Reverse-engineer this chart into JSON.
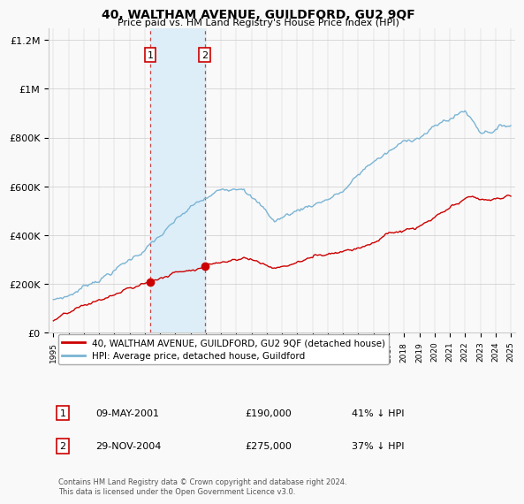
{
  "title": "40, WALTHAM AVENUE, GUILDFORD, GU2 9QF",
  "subtitle": "Price paid vs. HM Land Registry's House Price Index (HPI)",
  "ylabel_ticks": [
    "£0",
    "£200K",
    "£400K",
    "£600K",
    "£800K",
    "£1M",
    "£1.2M"
  ],
  "ylim": [
    0,
    1250000
  ],
  "yticks": [
    0,
    200000,
    400000,
    600000,
    800000,
    1000000,
    1200000
  ],
  "sale1_date": "09-MAY-2001",
  "sale1_price": 190000,
  "sale1_pct": "41% ↓ HPI",
  "sale1_label": "1",
  "sale1_year": 2001.35,
  "sale2_date": "29-NOV-2004",
  "sale2_price": 275000,
  "sale2_pct": "37% ↓ HPI",
  "sale2_label": "2",
  "sale2_year": 2004.92,
  "hpi_color": "#7ab4d4",
  "price_color": "#cc0000",
  "shade_color": "#ddeef8",
  "legend_label_red": "40, WALTHAM AVENUE, GUILDFORD, GU2 9QF (detached house)",
  "legend_label_blue": "HPI: Average price, detached house, Guildford",
  "footnote": "Contains HM Land Registry data © Crown copyright and database right 2024.\nThis data is licensed under the Open Government Licence v3.0.",
  "background_color": "#f9f9f9"
}
